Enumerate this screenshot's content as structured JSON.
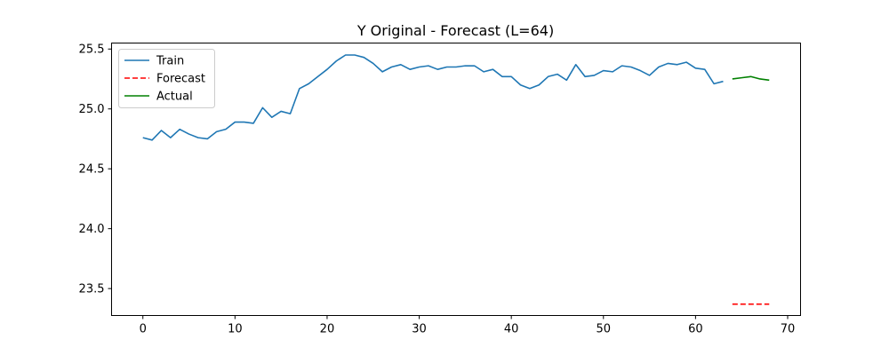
{
  "chart_data": {
    "type": "line",
    "title": "Y Original - Forecast (L=64)",
    "xlabel": "",
    "ylabel": "",
    "xlim": [
      -3.4,
      71.4
    ],
    "ylim": [
      23.275,
      25.55
    ],
    "x_ticks": [
      0,
      10,
      20,
      30,
      40,
      50,
      60,
      70
    ],
    "y_ticks": [
      23.5,
      24.0,
      24.5,
      25.0,
      25.5
    ],
    "y_tick_labels": [
      "23.5",
      "24.0",
      "24.5",
      "25.0",
      "25.5"
    ],
    "grid": false,
    "legend": {
      "position": "top-left"
    },
    "series": [
      {
        "name": "Train",
        "color": "#1f77b4",
        "style": "solid",
        "x": [
          0,
          1,
          2,
          3,
          4,
          5,
          6,
          7,
          8,
          9,
          10,
          11,
          12,
          13,
          14,
          15,
          16,
          17,
          18,
          19,
          20,
          21,
          22,
          23,
          24,
          25,
          26,
          27,
          28,
          29,
          30,
          31,
          32,
          33,
          34,
          35,
          36,
          37,
          38,
          39,
          40,
          41,
          42,
          43,
          44,
          45,
          46,
          47,
          48,
          49,
          50,
          51,
          52,
          53,
          54,
          55,
          56,
          57,
          58,
          59,
          60,
          61,
          62,
          63
        ],
        "y": [
          24.76,
          24.74,
          24.82,
          24.76,
          24.83,
          24.79,
          24.76,
          24.75,
          24.81,
          24.83,
          24.89,
          24.89,
          24.88,
          25.01,
          24.93,
          24.98,
          24.96,
          25.17,
          25.21,
          25.27,
          25.33,
          25.4,
          25.45,
          25.45,
          25.43,
          25.38,
          25.31,
          25.35,
          25.37,
          25.33,
          25.35,
          25.36,
          25.33,
          25.35,
          25.35,
          25.36,
          25.36,
          25.31,
          25.33,
          25.27,
          25.27,
          25.2,
          25.17,
          25.2,
          25.27,
          25.29,
          25.24,
          25.37,
          25.27,
          25.28,
          25.32,
          25.31,
          25.36,
          25.35,
          25.32,
          25.28,
          25.35,
          25.38,
          25.37,
          25.39,
          25.34,
          25.33,
          25.21,
          25.23
        ]
      },
      {
        "name": "Forecast",
        "color": "#ff0000",
        "style": "dashed",
        "x": [
          64,
          65,
          66,
          67,
          68
        ],
        "y": [
          23.37,
          23.37,
          23.37,
          23.37,
          23.37
        ]
      },
      {
        "name": "Actual",
        "color": "#008000",
        "style": "solid",
        "x": [
          64,
          65,
          66,
          67,
          68
        ],
        "y": [
          25.25,
          25.26,
          25.27,
          25.25,
          25.24
        ]
      }
    ]
  }
}
